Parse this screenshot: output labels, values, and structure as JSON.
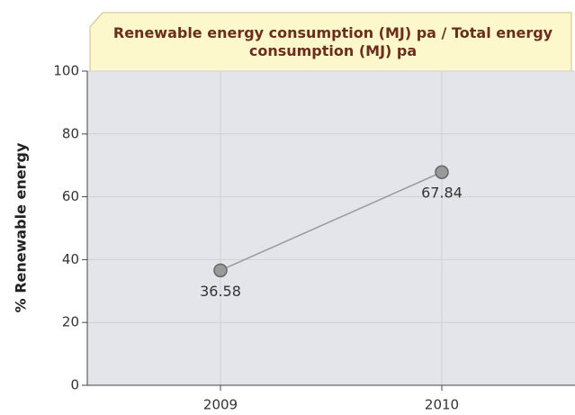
{
  "chart_data": {
    "type": "line",
    "title": "Renewable energy consumption (MJ) pa / Total energy consumption (MJ) pa",
    "y_label": "% Renewable energy",
    "categories": [
      "2009",
      "2010"
    ],
    "series": [
      {
        "name": "% Renewable energy",
        "color": "#999999",
        "values": [
          36.58,
          67.84
        ]
      }
    ],
    "ylim": [
      0,
      100
    ],
    "yticks": [
      0,
      20,
      40,
      60,
      80,
      100
    ],
    "grid": true
  }
}
